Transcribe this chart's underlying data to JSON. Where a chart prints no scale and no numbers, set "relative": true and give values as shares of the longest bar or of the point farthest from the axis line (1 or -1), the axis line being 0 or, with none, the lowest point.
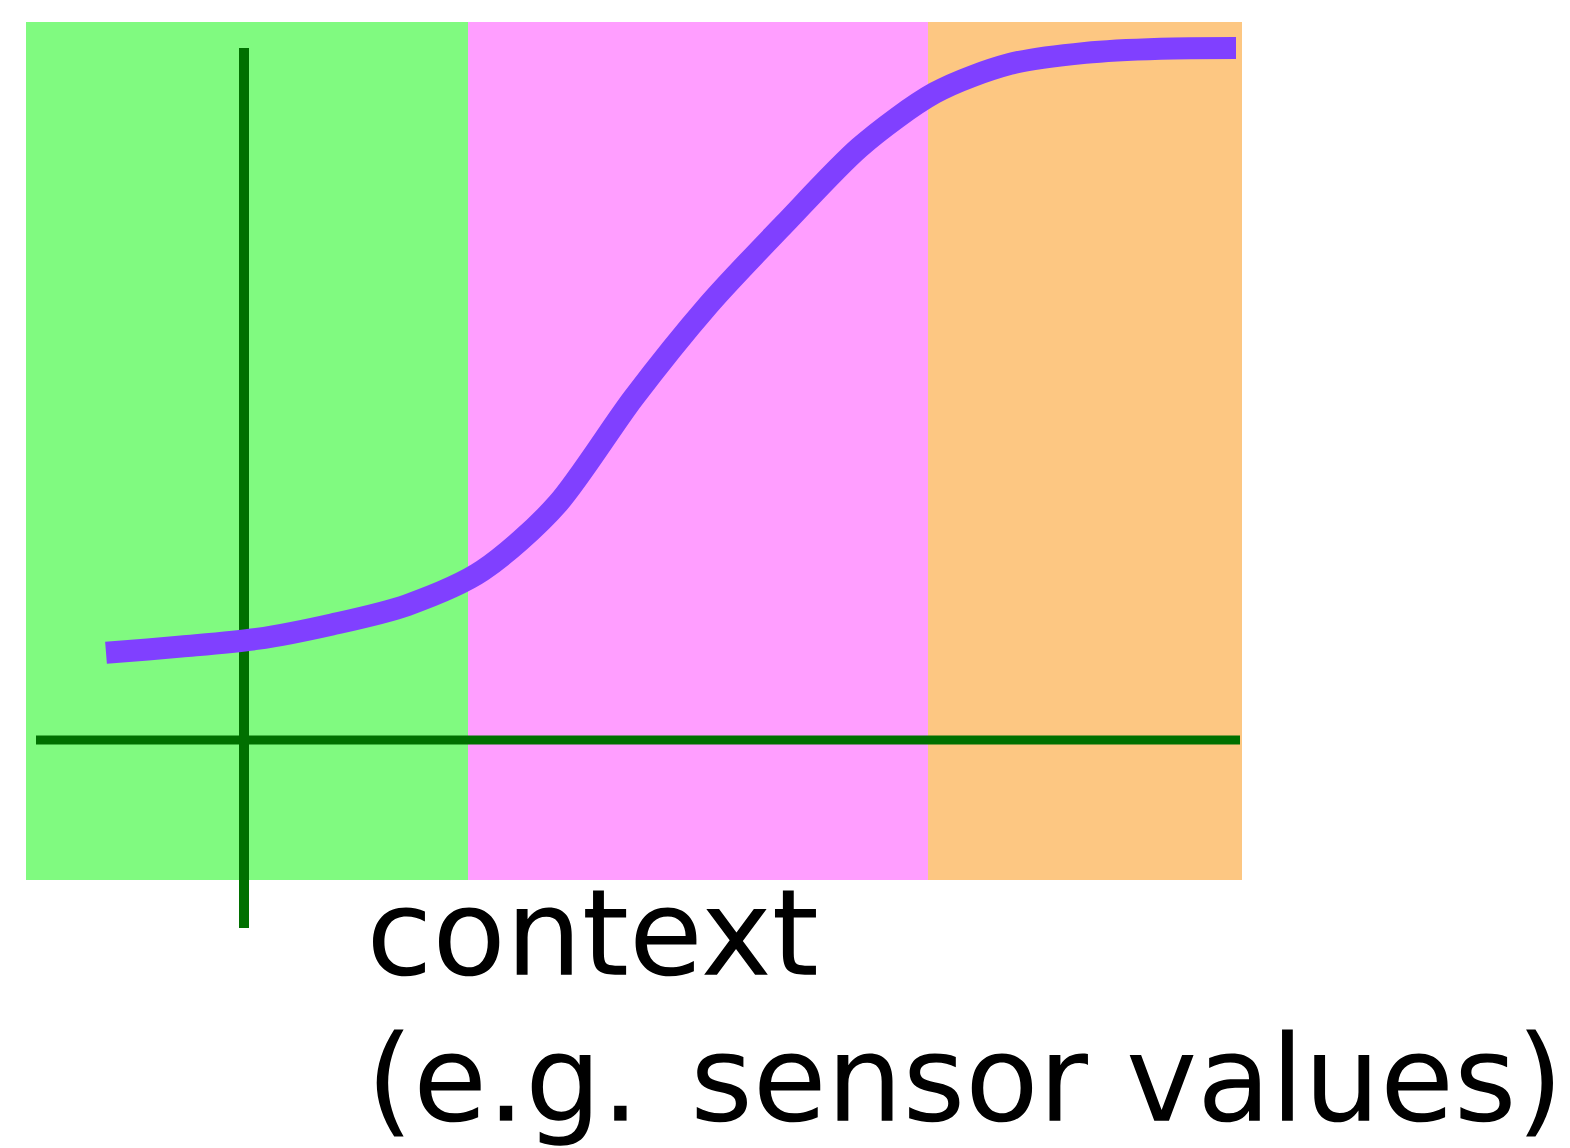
{
  "chart_data": {
    "type": "line",
    "xlabel": "context\n(e.g. sensor values)",
    "relative": true,
    "categories": [
      null,
      null,
      null,
      null,
      null,
      null,
      null,
      null,
      null,
      null,
      null,
      null,
      null,
      null,
      null,
      null
    ],
    "series": [
      {
        "color": "#8040ff",
        "values": [
          0.126,
          0.135,
          0.146,
          0.167,
          0.195,
          0.245,
          0.342,
          0.494,
          0.629,
          0.745,
          0.856,
          0.935,
          0.977,
          0.993,
          0.999,
          1
        ]
      }
    ],
    "ref_lines": [
      {
        "axis": "y",
        "value": 0,
        "color": "#007000"
      }
    ]
  }
}
